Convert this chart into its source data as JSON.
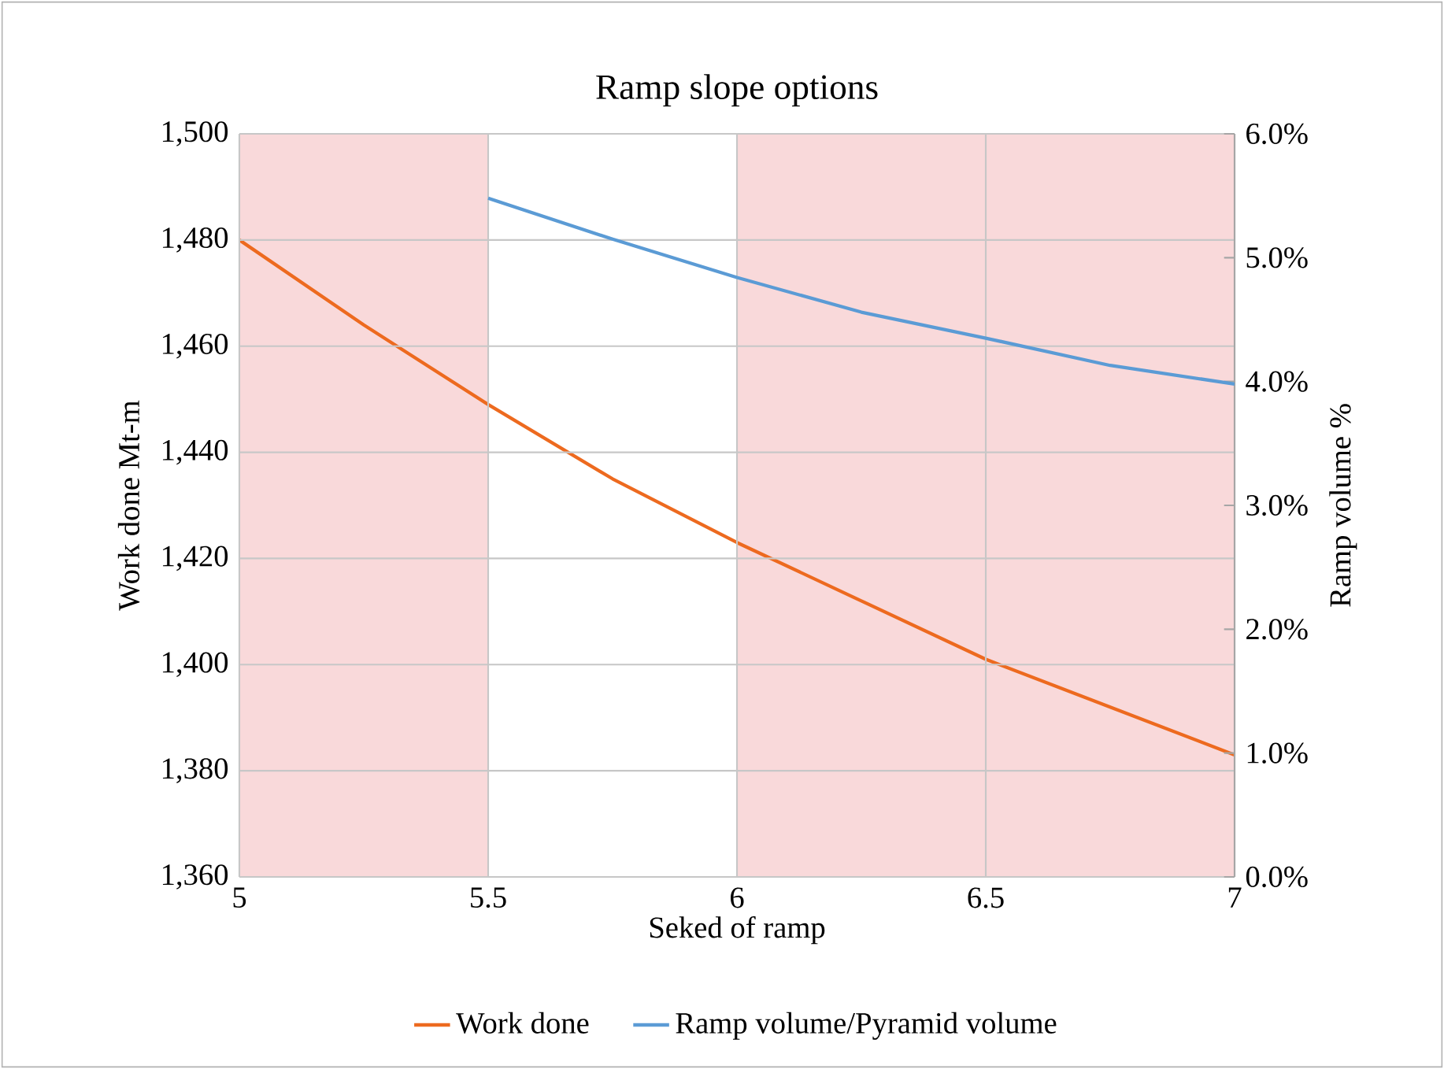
{
  "chart_data": {
    "type": "line",
    "title": "Ramp slope options",
    "xlabel": "Seked of ramp",
    "ylabel": "Work done Mt-m",
    "y2label": "Ramp volume %",
    "series": [
      {
        "name": "Work done",
        "color": "#ed6a1f",
        "x": [
          5,
          5.25,
          5.5,
          5.75,
          6,
          6.25,
          6.5,
          6.75,
          7
        ],
        "values": [
          1480,
          1464,
          1449,
          1435,
          1423,
          1412,
          1401,
          1392,
          1383
        ]
      },
      {
        "name": "Ramp volume/Pyramid volume",
        "color": "#5b9bd5",
        "axis": "y2",
        "x": [
          5.5,
          5.75,
          6,
          6.25,
          6.5,
          6.75,
          7
        ],
        "values": [
          5.48,
          5.15,
          4.84,
          4.56,
          4.35,
          4.13,
          3.98
        ]
      }
    ],
    "xlim": [
      5,
      7
    ],
    "xticks": [
      5,
      5.5,
      6,
      6.5,
      7
    ],
    "ylim": [
      1360,
      1500
    ],
    "yticks": [
      {
        "value": 1360,
        "label": "1,360"
      },
      {
        "value": 1380,
        "label": "1,380"
      },
      {
        "value": 1400,
        "label": "1,400"
      },
      {
        "value": 1420,
        "label": "1,420"
      },
      {
        "value": 1440,
        "label": "1,440"
      },
      {
        "value": 1460,
        "label": "1,460"
      },
      {
        "value": 1480,
        "label": "1,480"
      },
      {
        "value": 1500,
        "label": "1,500"
      }
    ],
    "y2lim": [
      0,
      6
    ],
    "y2ticks": [
      {
        "value": 0,
        "label": "0.0%"
      },
      {
        "value": 1,
        "label": "1.0%"
      },
      {
        "value": 2,
        "label": "2.0%"
      },
      {
        "value": 3,
        "label": "3.0%"
      },
      {
        "value": 4,
        "label": "4.0%"
      },
      {
        "value": 5,
        "label": "5.0%"
      },
      {
        "value": 6,
        "label": "6.0%"
      }
    ],
    "bands": [
      {
        "axis": "x",
        "from": 5,
        "to": 5.5,
        "color": "#f9d9da"
      },
      {
        "axis": "x",
        "from": 6,
        "to": 7,
        "color": "#f9d9da"
      }
    ],
    "grid": true,
    "legend": "bottom",
    "marker": "none",
    "line_style": "solid"
  }
}
